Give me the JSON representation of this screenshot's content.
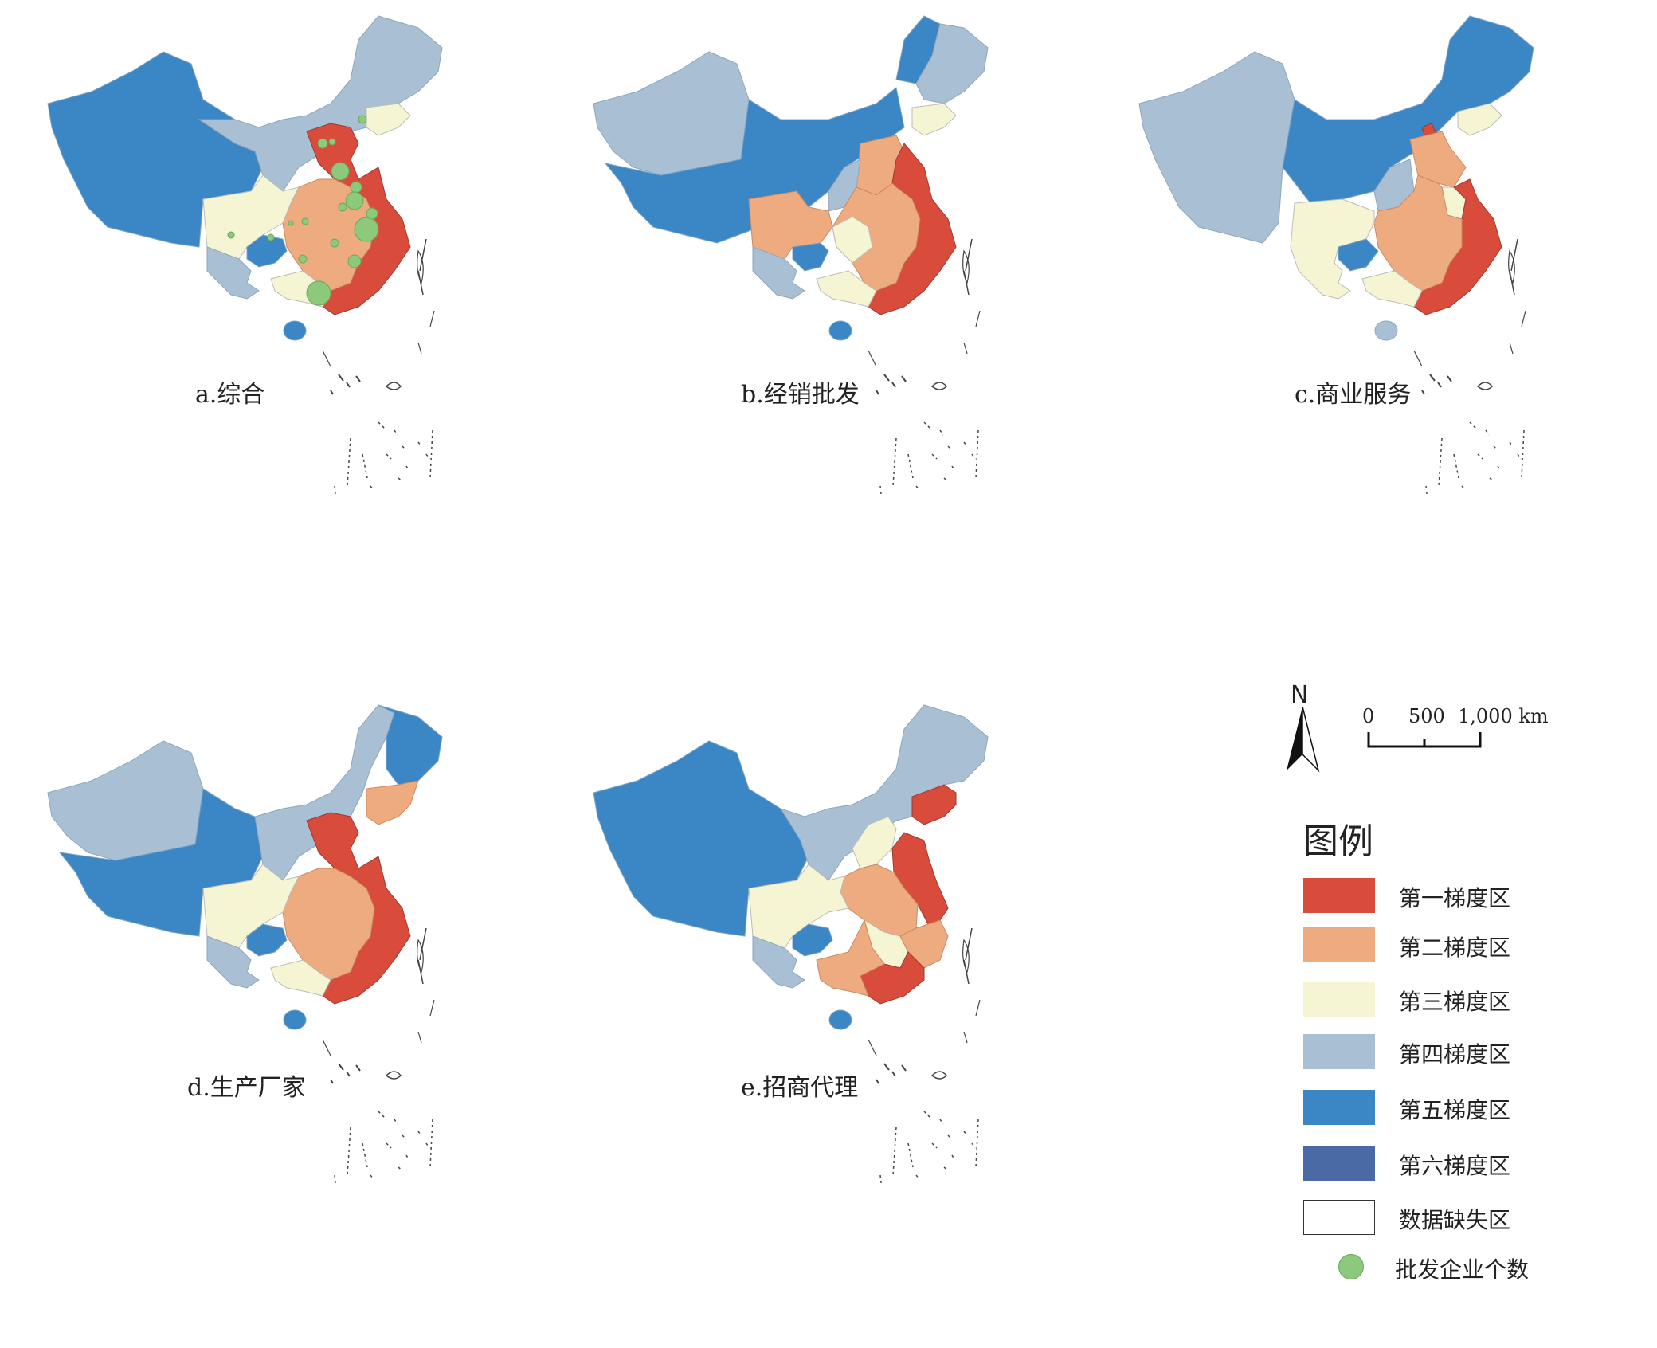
{
  "panels": [
    {
      "id": "a",
      "label": "a.综合"
    },
    {
      "id": "b",
      "label": "b.经销批发"
    },
    {
      "id": "c",
      "label": "c.商业服务"
    },
    {
      "id": "d",
      "label": "d.生产厂家"
    },
    {
      "id": "e",
      "label": "e.招商代理"
    }
  ],
  "north_label": "N",
  "scale": {
    "ticks": [
      "0",
      "500",
      "1,000 km"
    ]
  },
  "legend": {
    "title": "图例",
    "items": [
      {
        "label": "第一梯度区",
        "color": "#d94b3b"
      },
      {
        "label": "第二梯度区",
        "color": "#eeab80"
      },
      {
        "label": "第三梯度区",
        "color": "#f5f5d3"
      },
      {
        "label": "第四梯度区",
        "color": "#a9bfd4"
      },
      {
        "label": "第五梯度区",
        "color": "#3b87c6"
      },
      {
        "label": "第六梯度区",
        "color": "#4a6aa6"
      },
      {
        "label": "数据缺失区",
        "color": "#ffffff"
      }
    ],
    "dot_label": "批发企业个数",
    "dot_color": "#8dc97c"
  }
}
